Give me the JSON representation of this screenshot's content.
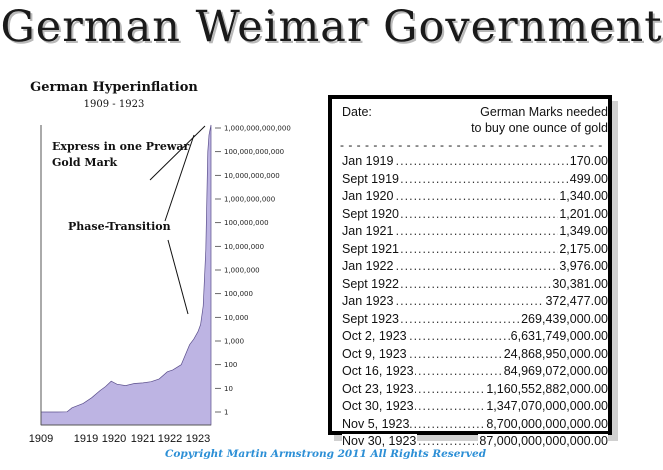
{
  "title": "German Weimar Government",
  "chart_data": {
    "type": "area",
    "title": "German Hyperinflation",
    "subtitle": "1909 - 1923",
    "y_scale": "log",
    "y_ticks": [
      1,
      10,
      100,
      1000,
      10000,
      100000,
      1000000,
      10000000,
      100000000,
      1000000000,
      10000000000,
      100000000000,
      1000000000000
    ],
    "y_tick_labels": [
      "1",
      "10",
      "100",
      "1,000",
      "10,000",
      "100,000",
      "1,000,000",
      "10,000,000",
      "100,000,000",
      "1,000,000,000",
      "10,000,000,000",
      "100,000,000,000",
      "1,000,000,000,000"
    ],
    "x_tick_labels": [
      "1909",
      "1919",
      "1920",
      "1921",
      "1922",
      "1923"
    ],
    "x_tick_positions": [
      1909,
      1919,
      1920,
      1921,
      1922,
      1923
    ],
    "fill_color": "#bdb4e3",
    "annotations": [
      "Express in one Prewar Gold Mark",
      "Phase-Transition"
    ],
    "series": [
      {
        "x": [
          1909,
          1914,
          1917,
          1918.5,
          1918.9,
          1919.2,
          1919.5,
          1919.7,
          1919.9,
          1920.1,
          1920.4,
          1920.7,
          1921.0,
          1921.3,
          1921.6,
          1921.9,
          1922.1,
          1922.4,
          1922.7,
          1922.85,
          1923.0,
          1923.2,
          1923.4,
          1923.6,
          1923.75,
          1923.85,
          1923.95
        ],
        "values": [
          1,
          1,
          1.02,
          1.5,
          2.3,
          4,
          8,
          12,
          20,
          15,
          13,
          16,
          17,
          19,
          25,
          50,
          60,
          100,
          700,
          1200,
          2500,
          5000,
          30000,
          7000000,
          100000000000,
          500000000000,
          1000000000000
        ]
      }
    ]
  },
  "table": {
    "header_date": "Date:",
    "header_note_line1": "German Marks needed",
    "header_note_line2": "to buy one ounce of gold",
    "rows": [
      {
        "date": "Jan 1919",
        "value": "170.00"
      },
      {
        "date": "Sept 1919",
        "value": "499.00"
      },
      {
        "date": "Jan 1920",
        "value": "1,340.00"
      },
      {
        "date": "Sept 1920",
        "value": "1,201.00"
      },
      {
        "date": "Jan 1921",
        "value": "1,349.00"
      },
      {
        "date": "Sept 1921",
        "value": "2,175.00"
      },
      {
        "date": "Jan 1922",
        "value": "3,976.00"
      },
      {
        "date": "Sept 1922",
        "value": "30,381.00"
      },
      {
        "date": "Jan 1923",
        "value": "372,477.00"
      },
      {
        "date": "Sept 1923",
        "value": "269,439,000.00"
      },
      {
        "date": "Oct 2, 1923",
        "value": "6,631,749,000.00"
      },
      {
        "date": "Oct 9, 1923",
        "value": "24,868,950,000.00"
      },
      {
        "date": "Oct 16, 1923",
        "value": "84,969,072,000.00"
      },
      {
        "date": "Oct 23, 1923",
        "value": "1,160,552,882,000.00"
      },
      {
        "date": "Oct 30, 1923",
        "value": "1,347,070,000,000.00"
      },
      {
        "date": "Nov 5, 1923",
        "value": "8,700,000,000,000.00"
      },
      {
        "date": "Nov 30, 1923",
        "value": "87,000,000,000,000.00"
      }
    ]
  },
  "copyright": "Copyright Martin Armstrong 2011 All Rights Reserved"
}
